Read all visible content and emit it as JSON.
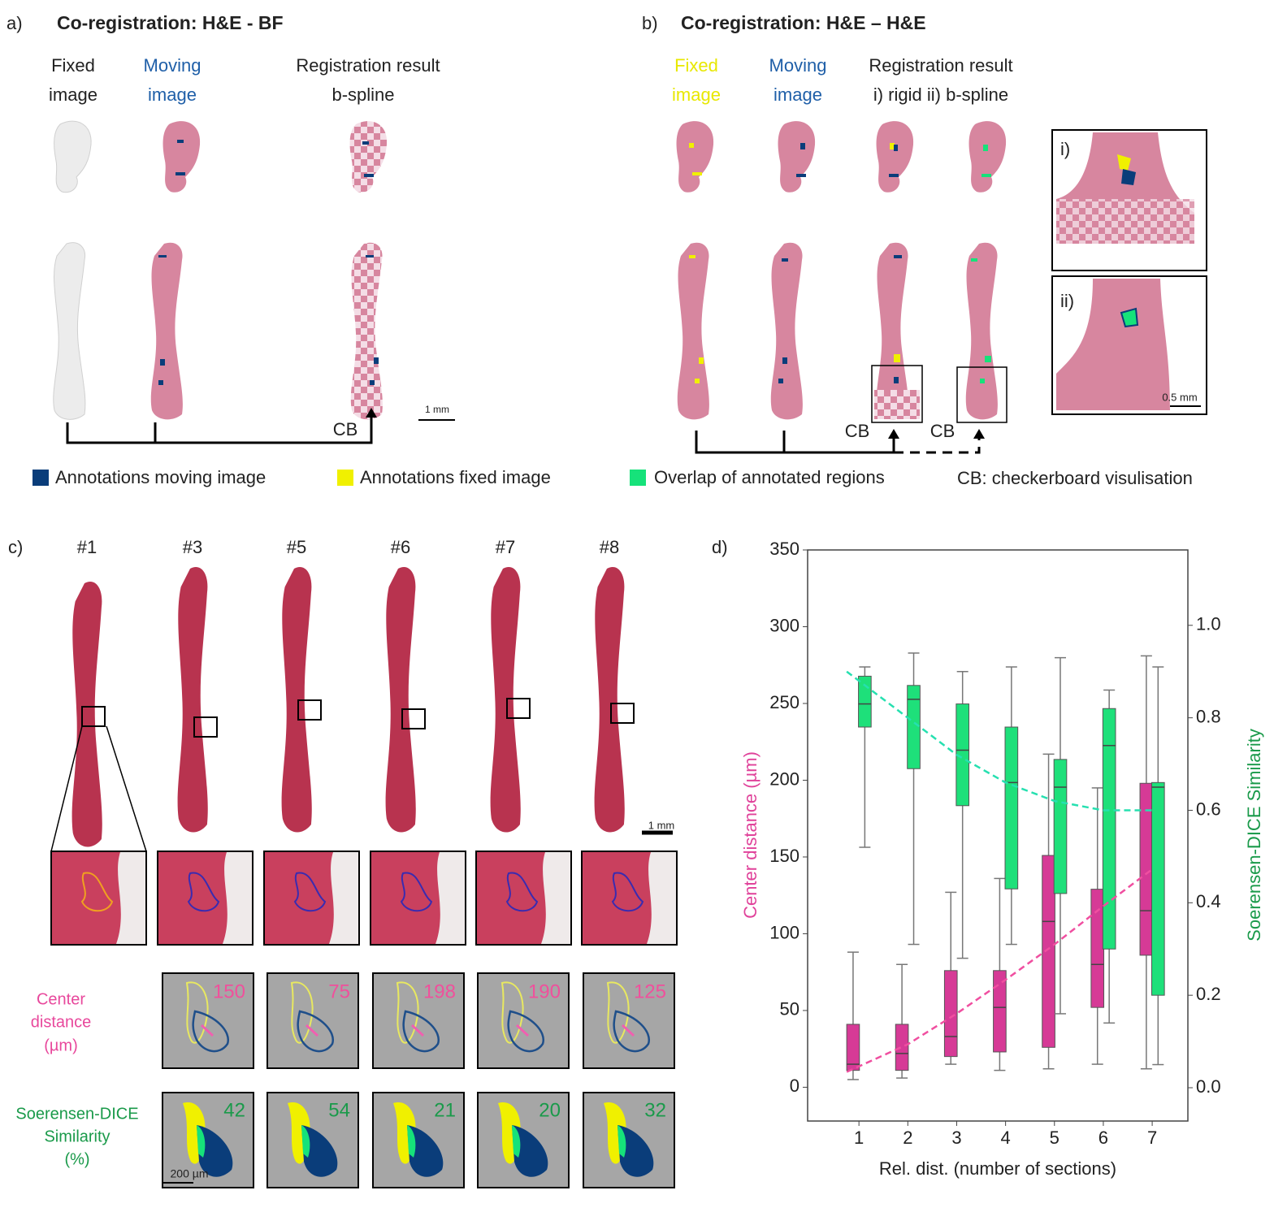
{
  "panel_a": {
    "label": "a)",
    "title": "Co-registration: H&E - BF",
    "headers": [
      [
        "Fixed",
        "image"
      ],
      [
        "Moving",
        "image"
      ],
      [
        "Registration result",
        "b-spline"
      ]
    ],
    "scale_bar": "1 mm",
    "cb": "CB"
  },
  "panel_b": {
    "label": "b)",
    "title": "Co-registration: H&E – H&E",
    "headers": [
      [
        "Fixed",
        "image"
      ],
      [
        "Moving",
        "image"
      ],
      [
        "Registration result",
        "i) rigid  ii) b-spline"
      ]
    ],
    "insets": [
      "i)",
      "ii)"
    ],
    "scale_bar": "0.5 mm",
    "cb": [
      "CB",
      "CB"
    ]
  },
  "legend": [
    "Annotations moving image",
    "Annotations fixed image",
    "Overlap of annotated regions",
    "CB: checkerboard visulisation"
  ],
  "panel_c": {
    "label": "c)",
    "samples": [
      "#1",
      "#3",
      "#5",
      "#6",
      "#7",
      "#8"
    ],
    "scale_bar": "1 mm",
    "center_label": [
      "Center",
      "distance",
      "(µm)"
    ],
    "center_values": [
      150,
      75,
      198,
      190,
      125
    ],
    "dice_label": [
      "Soerensen-DICE",
      "Similarity",
      "(%)"
    ],
    "dice_values": [
      42,
      54,
      21,
      20,
      32
    ],
    "small_scale_bar": "200 µm"
  },
  "chart_data": {
    "type": "box",
    "label": "d)",
    "xlabel": "Rel. dist. (number of sections)",
    "ylabel": "Center  distance  (µm)",
    "y2label": "Soerensen-DICE Similarity",
    "x": [
      1,
      2,
      3,
      4,
      5,
      6,
      7
    ],
    "xlim": [
      -0.05,
      7.73
    ],
    "xticks": [
      1,
      2,
      3,
      4,
      5,
      6,
      7
    ],
    "ylim": [
      -22,
      350
    ],
    "yticks": [
      0,
      50,
      100,
      150,
      200,
      250,
      300,
      350
    ],
    "y2lim": [
      -0.072,
      1.163
    ],
    "y2ticks": [
      {
        "value": 0,
        "label": "0.0"
      },
      0.2,
      0.4,
      0.6,
      0.8,
      {
        "value": 1,
        "label": "1.0"
      }
    ],
    "series": [
      {
        "color": "#d63a96",
        "trend_color": "#f04fa0",
        "axis": "y",
        "whislo": [
          5,
          6,
          15,
          11,
          12,
          15,
          12
        ],
        "q1": [
          11,
          11,
          20,
          23,
          26,
          52,
          86
        ],
        "med": [
          15,
          22,
          33,
          52,
          108,
          80,
          115
        ],
        "q3": [
          41,
          41,
          76,
          76,
          151,
          129,
          198
        ],
        "whishi": [
          88,
          80,
          127,
          136,
          217,
          195,
          281
        ],
        "trend": {
          "x": [
            0.75,
            2,
            3,
            4,
            5,
            6,
            7
          ],
          "values": [
            10,
            28,
            48,
            70,
            93,
            118,
            142
          ]
        }
      },
      {
        "color": "#1ee07a",
        "trend_color": "#26e0b0",
        "axis": "y2",
        "whislo": [
          0.52,
          0.31,
          0.28,
          0.31,
          0.16,
          0.14,
          0.05
        ],
        "q1": [
          0.78,
          0.69,
          0.61,
          0.43,
          0.42,
          0.3,
          0.2
        ],
        "med": [
          0.83,
          0.84,
          0.73,
          0.66,
          0.65,
          0.74,
          0.65
        ],
        "q3": [
          0.89,
          0.87,
          0.83,
          0.78,
          0.71,
          0.82,
          0.66
        ],
        "whishi": [
          0.91,
          0.94,
          0.9,
          0.91,
          0.93,
          0.86,
          0.91
        ],
        "trend": {
          "x": [
            0.75,
            2,
            3,
            4,
            5,
            6,
            7
          ],
          "values": [
            0.9,
            0.8,
            0.72,
            0.66,
            0.62,
            0.6,
            0.6
          ]
        }
      }
    ]
  }
}
